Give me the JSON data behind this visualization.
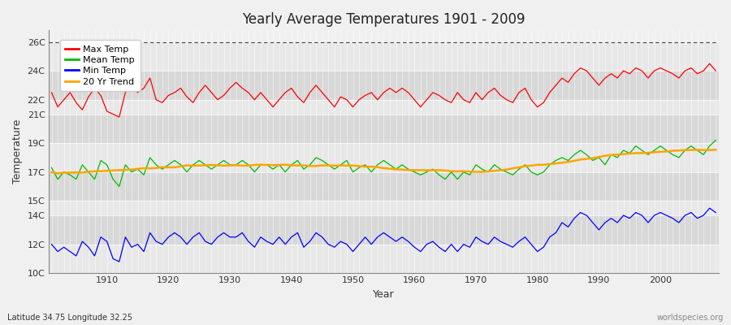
{
  "title": "Yearly Average Temperatures 1901 - 2009",
  "xlabel": "Year",
  "ylabel": "Temperature",
  "lat_lon_label": "Latitude 34.75 Longitude 32.25",
  "watermark": "worldspecies.org",
  "year_start": 1901,
  "year_end": 2009,
  "bg_color": "#f0f0f0",
  "plot_bg_color": "#f0f0f0",
  "max_temp_color": "#ff0000",
  "mean_temp_color": "#00bb00",
  "min_temp_color": "#0000ff",
  "trend_color": "#ffa500",
  "dashed_line_y": 26,
  "ylim_min": 10,
  "ylim_max": 26.8,
  "yticks": [
    10,
    12,
    14,
    15,
    17,
    19,
    21,
    22,
    24,
    26
  ],
  "ytick_labels": [
    "10C",
    "12C",
    "14C",
    "15C",
    "17C",
    "19C",
    "21C",
    "22C",
    "24C",
    "26C"
  ],
  "legend_labels": [
    "Max Temp",
    "Mean Temp",
    "Min Temp",
    "20 Yr Trend"
  ],
  "max_temps": [
    22.5,
    21.5,
    22.0,
    22.5,
    21.8,
    21.3,
    22.2,
    22.8,
    22.3,
    21.2,
    21.0,
    20.8,
    22.5,
    23.0,
    22.5,
    22.8,
    23.5,
    22.0,
    21.8,
    22.3,
    22.5,
    22.8,
    22.2,
    21.8,
    22.5,
    23.0,
    22.5,
    22.0,
    22.3,
    22.8,
    23.2,
    22.8,
    22.5,
    22.0,
    22.5,
    22.0,
    21.5,
    22.0,
    22.5,
    22.8,
    22.2,
    21.8,
    22.5,
    23.0,
    22.5,
    22.0,
    21.5,
    22.2,
    22.0,
    21.5,
    22.0,
    22.3,
    22.5,
    22.0,
    22.5,
    22.8,
    22.5,
    22.8,
    22.5,
    22.0,
    21.5,
    22.0,
    22.5,
    22.3,
    22.0,
    21.8,
    22.5,
    22.0,
    21.8,
    22.5,
    22.0,
    22.5,
    22.8,
    22.3,
    22.0,
    21.8,
    22.5,
    22.8,
    22.0,
    21.5,
    21.8,
    22.5,
    23.0,
    23.5,
    23.2,
    23.8,
    24.2,
    24.0,
    23.5,
    23.0,
    23.5,
    23.8,
    23.5,
    24.0,
    23.8,
    24.2,
    24.0,
    23.5,
    24.0,
    24.2,
    24.0,
    23.8,
    23.5,
    24.0,
    24.2,
    23.8,
    24.0,
    24.5,
    24.0
  ],
  "mean_temps": [
    17.3,
    16.5,
    17.0,
    16.8,
    16.5,
    17.5,
    17.0,
    16.5,
    17.8,
    17.5,
    16.5,
    16.0,
    17.5,
    17.0,
    17.2,
    16.8,
    18.0,
    17.5,
    17.2,
    17.5,
    17.8,
    17.5,
    17.0,
    17.5,
    17.8,
    17.5,
    17.2,
    17.5,
    17.8,
    17.5,
    17.5,
    17.8,
    17.5,
    17.0,
    17.5,
    17.5,
    17.2,
    17.5,
    17.0,
    17.5,
    17.8,
    17.2,
    17.5,
    18.0,
    17.8,
    17.5,
    17.2,
    17.5,
    17.8,
    17.0,
    17.3,
    17.5,
    17.0,
    17.5,
    17.8,
    17.5,
    17.2,
    17.5,
    17.2,
    17.0,
    16.8,
    17.0,
    17.2,
    16.8,
    16.5,
    17.0,
    16.5,
    17.0,
    16.8,
    17.5,
    17.2,
    17.0,
    17.5,
    17.2,
    17.0,
    16.8,
    17.2,
    17.5,
    17.0,
    16.8,
    17.0,
    17.5,
    17.8,
    18.0,
    17.8,
    18.2,
    18.5,
    18.2,
    17.8,
    18.0,
    17.5,
    18.2,
    18.0,
    18.5,
    18.3,
    18.8,
    18.5,
    18.2,
    18.5,
    18.8,
    18.5,
    18.2,
    18.0,
    18.5,
    18.8,
    18.5,
    18.2,
    18.8,
    19.2
  ],
  "min_temps": [
    12.0,
    11.5,
    11.8,
    11.5,
    11.2,
    12.2,
    11.8,
    11.2,
    12.5,
    12.2,
    11.0,
    10.8,
    12.5,
    11.8,
    12.0,
    11.5,
    12.8,
    12.2,
    12.0,
    12.5,
    12.8,
    12.5,
    12.0,
    12.5,
    12.8,
    12.2,
    12.0,
    12.5,
    12.8,
    12.5,
    12.5,
    12.8,
    12.2,
    11.8,
    12.5,
    12.2,
    12.0,
    12.5,
    12.0,
    12.5,
    12.8,
    11.8,
    12.2,
    12.8,
    12.5,
    12.0,
    11.8,
    12.2,
    12.0,
    11.5,
    12.0,
    12.5,
    12.0,
    12.5,
    12.8,
    12.5,
    12.2,
    12.5,
    12.2,
    11.8,
    11.5,
    12.0,
    12.2,
    11.8,
    11.5,
    12.0,
    11.5,
    12.0,
    11.8,
    12.5,
    12.2,
    12.0,
    12.5,
    12.2,
    12.0,
    11.8,
    12.2,
    12.5,
    12.0,
    11.5,
    11.8,
    12.5,
    12.8,
    13.5,
    13.2,
    13.8,
    14.2,
    14.0,
    13.5,
    13.0,
    13.5,
    13.8,
    13.5,
    14.0,
    13.8,
    14.2,
    14.0,
    13.5,
    14.0,
    14.2,
    14.0,
    13.8,
    13.5,
    14.0,
    14.2,
    13.8,
    14.0,
    14.5,
    14.2
  ]
}
